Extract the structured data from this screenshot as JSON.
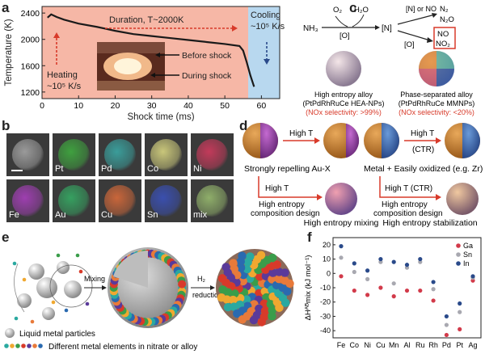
{
  "panels": {
    "a": {
      "label": "a",
      "chart_data": {
        "type": "line",
        "xlabel": "Shock time (ms)",
        "ylabel": "Temperature (K)",
        "xlim": [
          0,
          65
        ],
        "ylim": [
          1100,
          2500
        ],
        "xticks": [
          "0",
          "10",
          "20",
          "30",
          "40",
          "50",
          "60"
        ],
        "yticks": [
          "1200",
          "1600",
          "2000",
          "2400"
        ],
        "series": [
          {
            "x": [
              1.5,
              2.5,
              4,
              6,
              10,
              15,
              20,
              25,
              30,
              35,
              40,
              45,
              50,
              54,
              55,
              56,
              57,
              58
            ],
            "y": [
              2330,
              2380,
              2340,
              2300,
              2240,
              2190,
              2130,
              2080,
              2050,
              2020,
              1990,
              1960,
              1930,
              1900,
              1830,
              1650,
              1450,
              1280
            ]
          }
        ],
        "colors": {
          "heating": "#f6b7a6",
          "cooling": "#b8d8ef",
          "line": "#222222",
          "arrow": "#d83a2a"
        }
      },
      "annotations": {
        "duration": "Duration, T~2000K",
        "cooling": "Cooling",
        "cooling_rate": "~10⁵ K/s",
        "heating": "Heating",
        "heating_rate": "~10⁵ K/s",
        "before": "Before shock",
        "during": "During shock"
      }
    },
    "b": {
      "label": "b",
      "tiles": [
        {
          "label": "",
          "color": "#9a9a9a"
        },
        {
          "label": "Pt",
          "color": "#3fa03f"
        },
        {
          "label": "Pd",
          "color": "#3a9d9a"
        },
        {
          "label": "Co",
          "color": "#c9c67a"
        },
        {
          "label": "Ni",
          "color": "#c23a5a"
        },
        {
          "label": "Fe",
          "color": "#9e3fb0"
        },
        {
          "label": "Au",
          "color": "#36a060"
        },
        {
          "label": "Cu",
          "color": "#c9663a"
        },
        {
          "label": "Sn",
          "color": "#3a4fae"
        },
        {
          "label": "mix",
          "color": "#8fae6a"
        }
      ]
    },
    "c": {
      "label": "c",
      "reaction": {
        "nh3": "NH₃",
        "o2": "O₂",
        "h2o": "H₂O",
        "o_first": "[O]",
        "n": "[N]",
        "n_or_no": "[N] or NO",
        "o_second": "[O]",
        "n2": "N₂",
        "n2o": "N₂O",
        "no": "NO",
        "no2": "NO₂"
      },
      "left_caption": [
        "High entropy alloy",
        "(PtPdRhRuCe HEA-NPs)",
        "(NOx selectivity: >99%)"
      ],
      "right_caption": [
        "Phase-separated alloy",
        "(PtPdRhRuCe MMNPs)",
        "(NOx selectivity: <20%)"
      ]
    },
    "d": {
      "label": "d",
      "arrow_high_t": "High T",
      "arrow_high_t_ctr": "High T",
      "ctr": "(CTR)",
      "left_caption": "Strongly repelling Au-X",
      "right_caption": "Metal + Easily oxidized (e.g. Zr)",
      "down_left": "High T",
      "down_left_sub": [
        "High entropy",
        "composition design"
      ],
      "down_right": "High T (CTR)",
      "down_right_sub": [
        "High entropy",
        "composition design"
      ],
      "mixing": "High entropy mixing",
      "stabilization": "High entropy stabilization"
    },
    "e": {
      "label": "e",
      "mixing": "Mixing",
      "reduction": "H₂",
      "reduction_word": "reduction",
      "legend_particles": "Liquid metal particles",
      "legend_elements": "Different metal elements in nitrate or alloy"
    },
    "f": {
      "label": "f",
      "chart_data": {
        "type": "scatter",
        "ylabel": "ΔHᴬᴮmix (kJ mol⁻¹)",
        "ylim": [
          -45,
          25
        ],
        "yticks": [
          "20",
          "10",
          "0",
          "-10",
          "-20",
          "-30",
          "-40"
        ],
        "categories": [
          "Fe",
          "Co",
          "Ni",
          "Cu",
          "Mn",
          "Al",
          "Ru",
          "Rh",
          "Pd",
          "Pt",
          "Ag"
        ],
        "series": [
          {
            "name": "Ga",
            "color": "#d23a4a",
            "values": [
              -2,
              -12,
              -15,
              -10,
              -16,
              -12,
              -12,
              -19,
              -43,
              -39,
              -5
            ]
          },
          {
            "name": "Sn",
            "color": "#a8a8b0",
            "values": [
              11,
              1,
              -4,
              8,
              -7,
              4,
              8,
              -11,
              -36,
              -27,
              -3
            ]
          },
          {
            "name": "In",
            "color": "#2a4a8a",
            "values": [
              19,
              7,
              2,
              10,
              8,
              6,
              10,
              -6,
              -30,
              -21,
              -2
            ]
          }
        ]
      }
    }
  }
}
